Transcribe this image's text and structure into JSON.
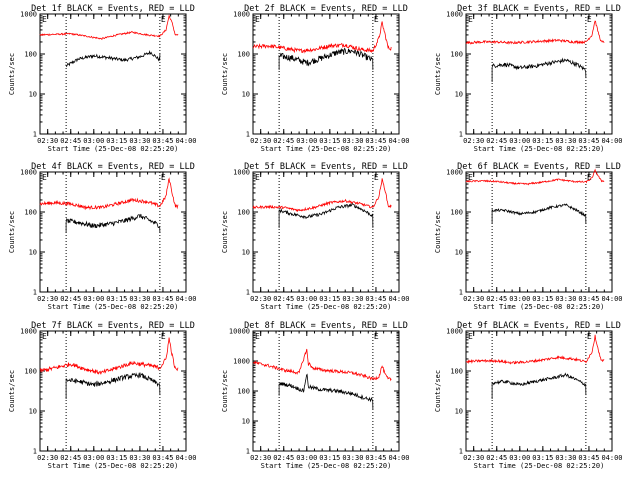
{
  "figure": {
    "xlabel": "Start Time (25-Dec-08 02:25:20)",
    "ylabel": "Counts/sec",
    "marker_letter": "E",
    "colors": {
      "events": "#000000",
      "lld": "#ff0000",
      "axes": "#000000"
    }
  },
  "chart_data": [
    {
      "type": "line",
      "title": "Det 1f BLACK = Events, RED = LLD",
      "xticks": [
        "02:30",
        "02:45",
        "03:00",
        "03:15",
        "03:30",
        "03:45",
        "04:00"
      ],
      "yticks": [
        "1",
        "10",
        "100",
        "1000"
      ],
      "ylim": [
        1,
        1000
      ],
      "yscale": "log",
      "xlim_minutes": [
        0,
        95
      ],
      "markers_minutes": [
        17,
        78
      ],
      "series": [
        {
          "key": "events",
          "x": [
            17,
            25,
            35,
            45,
            55,
            65,
            72,
            78
          ],
          "y": [
            50,
            75,
            90,
            80,
            70,
            85,
            110,
            70
          ],
          "noise": 0.04,
          "gaps": [
            [
              17,
              50
            ],
            [
              78,
              100
            ]
          ]
        },
        {
          "key": "lld",
          "x": [
            0,
            10,
            20,
            30,
            40,
            50,
            60,
            70,
            78,
            82,
            84,
            86,
            88,
            90
          ],
          "y": [
            300,
            310,
            320,
            280,
            240,
            300,
            350,
            300,
            280,
            400,
            900,
            600,
            300,
            300
          ],
          "noise": 0.02
        }
      ]
    },
    {
      "type": "line",
      "title": "Det 2f BLACK = Events, RED = LLD",
      "xticks": [
        "02:30",
        "02:45",
        "03:00",
        "03:15",
        "03:30",
        "03:45",
        "04:00"
      ],
      "yticks": [
        "1",
        "10",
        "100",
        "1000"
      ],
      "ylim": [
        1,
        1000
      ],
      "yscale": "log",
      "xlim_minutes": [
        0,
        95
      ],
      "markers_minutes": [
        17,
        78
      ],
      "series": [
        {
          "key": "events",
          "x": [
            17,
            25,
            35,
            45,
            55,
            65,
            72,
            78
          ],
          "y": [
            90,
            80,
            60,
            80,
            110,
            120,
            90,
            70
          ],
          "noise": 0.08,
          "gaps": [
            [
              17,
              40
            ],
            [
              78,
              40
            ]
          ]
        },
        {
          "key": "lld",
          "x": [
            0,
            10,
            20,
            30,
            40,
            50,
            60,
            70,
            78,
            82,
            84,
            86,
            88,
            90
          ],
          "y": [
            150,
            160,
            140,
            120,
            130,
            160,
            170,
            130,
            120,
            250,
            600,
            300,
            140,
            140
          ],
          "noise": 0.05
        }
      ]
    },
    {
      "type": "line",
      "title": "Det 3f BLACK = Events, RED = LLD",
      "xticks": [
        "02:30",
        "02:45",
        "03:00",
        "03:15",
        "03:30",
        "03:45",
        "04:00"
      ],
      "yticks": [
        "1",
        "10",
        "100",
        "1000"
      ],
      "ylim": [
        1,
        1000
      ],
      "yscale": "log",
      "xlim_minutes": [
        0,
        95
      ],
      "markers_minutes": [
        17,
        78
      ],
      "series": [
        {
          "key": "events",
          "x": [
            17,
            25,
            35,
            45,
            55,
            65,
            72,
            78
          ],
          "y": [
            50,
            55,
            45,
            50,
            60,
            70,
            55,
            40
          ],
          "noise": 0.05,
          "gaps": [
            [
              17,
              20
            ],
            [
              78,
              25
            ]
          ]
        },
        {
          "key": "lld",
          "x": [
            0,
            10,
            20,
            30,
            40,
            50,
            60,
            70,
            78,
            82,
            84,
            86,
            88,
            90
          ],
          "y": [
            190,
            200,
            200,
            190,
            200,
            210,
            220,
            200,
            200,
            300,
            700,
            350,
            200,
            200
          ],
          "noise": 0.03
        }
      ]
    },
    {
      "type": "line",
      "title": "Det 4f BLACK = Events, RED = LLD",
      "xticks": [
        "02:30",
        "02:45",
        "03:00",
        "03:15",
        "03:30",
        "03:45",
        "04:00"
      ],
      "yticks": [
        "1",
        "10",
        "100",
        "1000"
      ],
      "ylim": [
        1,
        1000
      ],
      "yscale": "log",
      "xlim_minutes": [
        0,
        95
      ],
      "markers_minutes": [
        17,
        78
      ],
      "series": [
        {
          "key": "events",
          "x": [
            17,
            25,
            35,
            45,
            55,
            65,
            72,
            78
          ],
          "y": [
            60,
            55,
            45,
            50,
            60,
            80,
            60,
            45
          ],
          "noise": 0.06,
          "gaps": [
            [
              17,
              30
            ],
            [
              78,
              30
            ]
          ]
        },
        {
          "key": "lld",
          "x": [
            0,
            10,
            20,
            30,
            40,
            50,
            60,
            70,
            78,
            82,
            84,
            86,
            88,
            90
          ],
          "y": [
            160,
            170,
            160,
            130,
            130,
            160,
            200,
            180,
            140,
            250,
            700,
            300,
            140,
            140
          ],
          "noise": 0.04
        }
      ]
    },
    {
      "type": "line",
      "title": "Det 5f BLACK = Events, RED = LLD",
      "xticks": [
        "02:30",
        "02:45",
        "03:00",
        "03:15",
        "03:30",
        "03:45",
        "04:00"
      ],
      "yticks": [
        "1",
        "10",
        "100",
        "1000"
      ],
      "ylim": [
        1,
        1000
      ],
      "yscale": "log",
      "xlim_minutes": [
        0,
        95
      ],
      "markers_minutes": [
        17,
        78
      ],
      "series": [
        {
          "key": "events",
          "x": [
            17,
            25,
            35,
            45,
            55,
            65,
            72,
            78
          ],
          "y": [
            110,
            90,
            75,
            90,
            130,
            150,
            110,
            80
          ],
          "noise": 0.04,
          "gaps": [
            [
              17,
              40
            ],
            [
              78,
              40
            ]
          ]
        },
        {
          "key": "lld",
          "x": [
            0,
            10,
            20,
            30,
            40,
            50,
            60,
            70,
            78,
            82,
            84,
            86,
            88,
            90
          ],
          "y": [
            130,
            135,
            130,
            110,
            130,
            170,
            190,
            160,
            130,
            250,
            650,
            350,
            140,
            140
          ],
          "noise": 0.03
        }
      ]
    },
    {
      "type": "line",
      "title": "Det 6f BLACK = Events, RED = LLD",
      "xticks": [
        "02:30",
        "02:45",
        "03:00",
        "03:15",
        "03:30",
        "03:45",
        "04:00"
      ],
      "yticks": [
        "1",
        "10",
        "100",
        "1000"
      ],
      "ylim": [
        1,
        1000
      ],
      "yscale": "log",
      "xlim_minutes": [
        0,
        95
      ],
      "markers_minutes": [
        17,
        78
      ],
      "series": [
        {
          "key": "events",
          "x": [
            17,
            25,
            35,
            45,
            55,
            65,
            72,
            78
          ],
          "y": [
            110,
            110,
            90,
            100,
            130,
            150,
            110,
            80
          ],
          "noise": 0.03,
          "gaps": [
            [
              17,
              50
            ],
            [
              78,
              50
            ]
          ]
        },
        {
          "key": "lld",
          "x": [
            0,
            10,
            20,
            30,
            40,
            50,
            60,
            70,
            78,
            82,
            84,
            86,
            88,
            90
          ],
          "y": [
            580,
            600,
            580,
            520,
            500,
            560,
            650,
            580,
            560,
            700,
            1100,
            800,
            600,
            600
          ],
          "noise": 0.02
        }
      ]
    },
    {
      "type": "line",
      "title": "Det 7f BLACK = Events, RED = LLD",
      "xticks": [
        "02:30",
        "02:45",
        "03:00",
        "03:15",
        "03:30",
        "03:45",
        "04:00"
      ],
      "yticks": [
        "1",
        "10",
        "100",
        "1000"
      ],
      "ylim": [
        1,
        1000
      ],
      "yscale": "log",
      "xlim_minutes": [
        0,
        95
      ],
      "markers_minutes": [
        17,
        78
      ],
      "series": [
        {
          "key": "events",
          "x": [
            17,
            25,
            35,
            45,
            55,
            65,
            72,
            78
          ],
          "y": [
            60,
            55,
            45,
            55,
            70,
            80,
            60,
            45
          ],
          "noise": 0.06,
          "gaps": [
            [
              17,
              20
            ],
            [
              78,
              25
            ]
          ]
        },
        {
          "key": "lld",
          "x": [
            0,
            10,
            20,
            30,
            40,
            50,
            60,
            70,
            78,
            82,
            84,
            86,
            88,
            90
          ],
          "y": [
            100,
            120,
            150,
            110,
            90,
            120,
            160,
            140,
            120,
            200,
            650,
            250,
            110,
            110
          ],
          "noise": 0.05
        }
      ]
    },
    {
      "type": "line",
      "title": "Det 8f BLACK = Events, RED = LLD",
      "xticks": [
        "02:30",
        "02:45",
        "03:00",
        "03:15",
        "03:30",
        "03:45",
        "04:00"
      ],
      "yticks": [
        "1",
        "10",
        "100",
        "1000",
        "10000"
      ],
      "ylim": [
        1,
        10000
      ],
      "yscale": "log",
      "xlim_minutes": [
        0,
        95
      ],
      "markers_minutes": [
        17,
        78
      ],
      "series": [
        {
          "key": "events",
          "x": [
            17,
            25,
            33,
            35,
            36,
            38,
            45,
            55,
            65,
            72,
            78
          ],
          "y": [
            180,
            150,
            100,
            400,
            140,
            130,
            110,
            100,
            80,
            60,
            50
          ],
          "noise": 0.06,
          "gaps": [
            [
              17,
              70
            ],
            [
              78,
              25
            ]
          ]
        },
        {
          "key": "lld",
          "x": [
            0,
            10,
            20,
            30,
            35,
            36,
            37,
            38,
            45,
            55,
            65,
            72,
            78,
            82,
            84,
            86,
            88,
            90
          ],
          "y": [
            900,
            700,
            500,
            400,
            2500,
            700,
            900,
            600,
            500,
            450,
            400,
            320,
            250,
            300,
            700,
            350,
            250,
            250
          ],
          "noise": 0.05
        }
      ]
    },
    {
      "type": "line",
      "title": "Det 9f BLACK = Events, RED = LLD",
      "xticks": [
        "02:30",
        "02:45",
        "03:00",
        "03:15",
        "03:30",
        "03:45",
        "04:00"
      ],
      "yticks": [
        "1",
        "10",
        "100",
        "1000"
      ],
      "ylim": [
        1,
        1000
      ],
      "yscale": "log",
      "xlim_minutes": [
        0,
        95
      ],
      "markers_minutes": [
        17,
        78
      ],
      "series": [
        {
          "key": "events",
          "x": [
            17,
            25,
            35,
            45,
            55,
            65,
            72,
            78
          ],
          "y": [
            50,
            55,
            45,
            55,
            65,
            80,
            60,
            45
          ],
          "noise": 0.04,
          "gaps": [
            [
              17,
              20
            ],
            [
              78,
              25
            ]
          ]
        },
        {
          "key": "lld",
          "x": [
            0,
            10,
            20,
            30,
            40,
            50,
            60,
            70,
            78,
            82,
            84,
            86,
            88,
            90
          ],
          "y": [
            170,
            180,
            180,
            160,
            170,
            190,
            220,
            200,
            170,
            300,
            750,
            350,
            180,
            180
          ],
          "noise": 0.03
        }
      ]
    }
  ]
}
